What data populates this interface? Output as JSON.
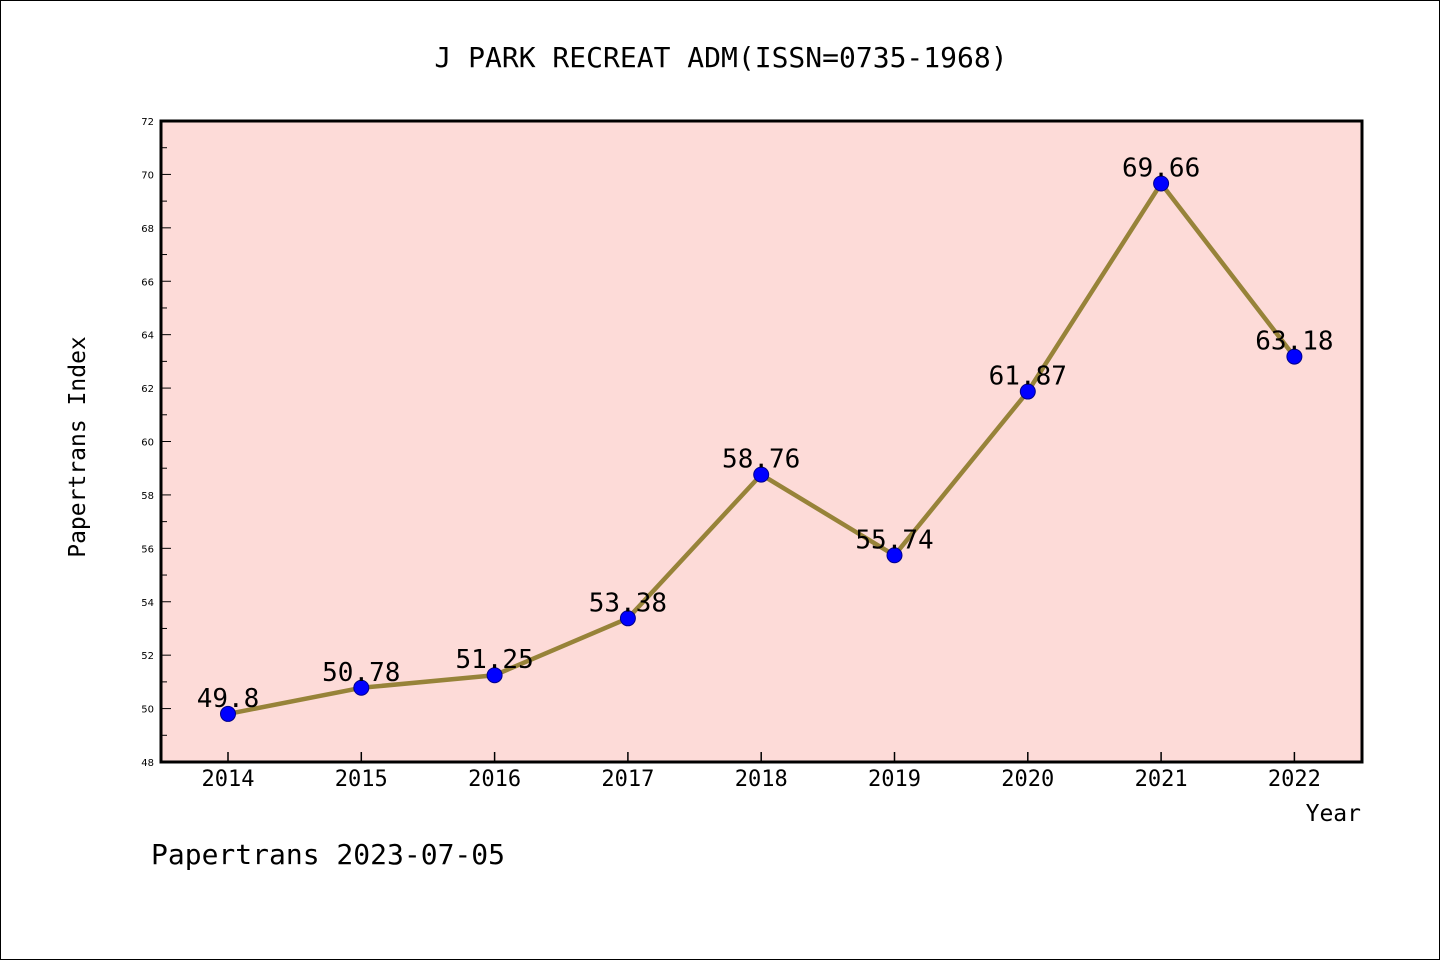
{
  "chart_data": {
    "type": "line",
    "title": "J PARK RECREAT ADM(ISSN=0735-1968)",
    "xlabel": "Year",
    "ylabel": "Papertrans Index",
    "categories": [
      "2014",
      "2015",
      "2016",
      "2017",
      "2018",
      "2019",
      "2020",
      "2021",
      "2022"
    ],
    "values": [
      49.8,
      50.78,
      51.25,
      53.38,
      58.76,
      55.74,
      61.87,
      69.66,
      63.18
    ],
    "data_labels": [
      "49.8",
      "50.78",
      "51.25",
      "53.38",
      "58.76",
      "55.74",
      "61.87",
      "69.66",
      "63.18"
    ],
    "ylim": [
      48,
      72
    ],
    "yticks": [
      48,
      50,
      52,
      54,
      56,
      58,
      60,
      62,
      64,
      66,
      68,
      70,
      72
    ],
    "ytick_labels": [
      "48",
      "50",
      "52",
      "54",
      "56",
      "58",
      "60",
      "62",
      "64",
      "66",
      "68",
      "70",
      "72"
    ],
    "grid": false,
    "legend": "none",
    "colors": {
      "plot_background": "#fddbd8",
      "line": "#978339",
      "marker": "#0000ff",
      "marker_edge": "#00008b",
      "axes": "#000000"
    }
  },
  "footer": {
    "text": "Papertrans 2023-07-05"
  }
}
